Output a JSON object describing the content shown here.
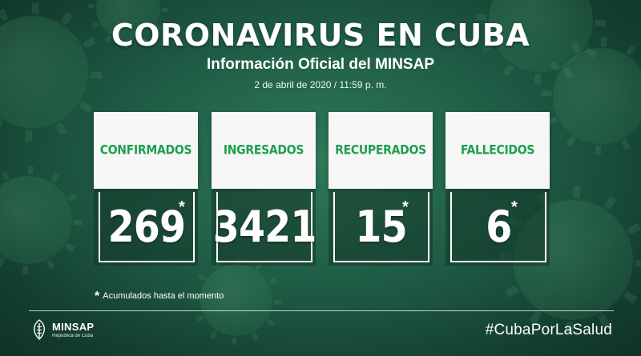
{
  "header": {
    "title": "CORONAVIRUS EN CUBA",
    "subtitle": "Información Oficial del MINSAP",
    "date": "2 de abril de 2020 / 11:59 p. m."
  },
  "stats": [
    {
      "label": "CONFIRMADOS",
      "value": "269",
      "mark": "*"
    },
    {
      "label": "INGRESADOS",
      "value": "3421",
      "mark": ""
    },
    {
      "label": "RECUPERADOS",
      "value": "15",
      "mark": "*"
    },
    {
      "label": "FALLECIDOS",
      "value": "6",
      "mark": "*"
    }
  ],
  "footnote": {
    "mark": "*",
    "text": "Acumulados hasta el momento"
  },
  "footer": {
    "logo_name": "MINSAP",
    "logo_sub": "República de Cuba",
    "hashtag": "#CubaPorLaSalud"
  },
  "colors": {
    "background": "#1f5c45",
    "label_green": "#1e9f4e",
    "card_head": "#f6f7f6",
    "text": "#ffffff"
  },
  "icons": {
    "background_decoration": "virus-icon",
    "logo": "minsap-emblem-icon"
  }
}
